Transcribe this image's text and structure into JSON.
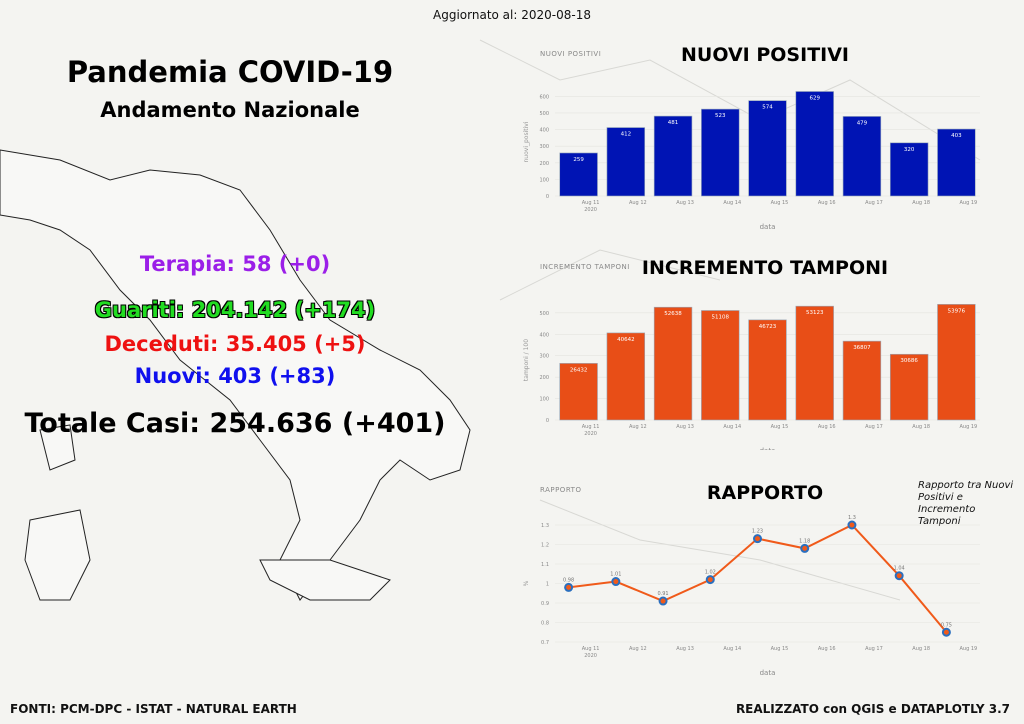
{
  "header": {
    "updated": "Aggiornato al: 2020-08-18"
  },
  "title": {
    "main": "Pandemia COVID-19",
    "sub": "Andamento Nazionale"
  },
  "stats": {
    "terapia": "Terapia: 58 (+0)",
    "guariti": "Guariti: 204.142 (+174)",
    "deceduti": "Deceduti: 35.405 (+5)",
    "nuovi": "Nuovi: 403 (+83)",
    "totale": "Totale Casi: 254.636 (+401)"
  },
  "colors": {
    "terapia": "#9b1fe8",
    "guariti": "#22dd22",
    "deceduti": "#ee1111",
    "nuovi": "#1010ee",
    "bar1": "#0014b4",
    "bar2": "#e84e17",
    "line": "#f05a1a",
    "marker": "#2a6fbf"
  },
  "footer": {
    "left": "FONTI: PCM-DPC - ISTAT - NATURAL EARTH",
    "right": "REALIZZATO con QGIS e DATAPLOTLY 3.7"
  },
  "note": "Rapporto tra Nuovi Positivi e Incremento Tamponi",
  "chart_data": [
    {
      "type": "bar",
      "title": "NUOVI POSITIVI",
      "layer_label": "NUOVI POSITIVI",
      "xlabel": "data",
      "ylabel": "nuovi_positivi",
      "ylim": [
        0,
        650
      ],
      "yticks": [
        0,
        100,
        200,
        300,
        400,
        500,
        600
      ],
      "categories": [
        "Aug 11\n2020",
        "Aug 12",
        "Aug 13",
        "Aug 14",
        "Aug 15",
        "Aug 16",
        "Aug 17",
        "Aug 18",
        "Aug 19"
      ],
      "values": [
        259,
        412,
        481,
        523,
        574,
        629,
        479,
        320,
        403
      ],
      "labels": [
        "259",
        "412",
        "481",
        "523",
        "574",
        "629",
        "479",
        "320",
        "403"
      ]
    },
    {
      "type": "bar",
      "title": "INCREMENTO TAMPONI",
      "layer_label": "INCREMENTO TAMPONI",
      "xlabel": "data",
      "ylabel": "tamponi / 100",
      "ylim": [
        0,
        560
      ],
      "yticks": [
        0,
        100,
        200,
        300,
        400,
        500
      ],
      "categories": [
        "Aug 11\n2020",
        "Aug 12",
        "Aug 13",
        "Aug 14",
        "Aug 15",
        "Aug 16",
        "Aug 17",
        "Aug 18",
        "Aug 19"
      ],
      "values": [
        264.32,
        406.42,
        526.38,
        511.08,
        467.23,
        531.23,
        368.07,
        306.86,
        539.76
      ],
      "labels": [
        "26432",
        "40642",
        "52638",
        "51108",
        "46723",
        "53123",
        "36807",
        "30686",
        "53976"
      ]
    },
    {
      "type": "line",
      "title": "RAPPORTO",
      "layer_label": "RAPPORTO",
      "xlabel": "data",
      "ylabel": "%",
      "ylim": [
        0.7,
        1.3
      ],
      "yticks": [
        0.7,
        0.8,
        0.9,
        1,
        1.1,
        1.2,
        1.3
      ],
      "categories": [
        "Aug 11\n2020",
        "Aug 12",
        "Aug 13",
        "Aug 14",
        "Aug 15",
        "Aug 16",
        "Aug 17",
        "Aug 18",
        "Aug 19"
      ],
      "values": [
        0.98,
        1.01,
        0.91,
        1.02,
        1.23,
        1.18,
        1.3,
        1.04,
        0.75
      ],
      "labels": [
        "0.98",
        "1.01",
        "0.91",
        "1.02",
        "1.23",
        "1.18",
        "1.3",
        "1.04",
        "0.75"
      ]
    }
  ]
}
